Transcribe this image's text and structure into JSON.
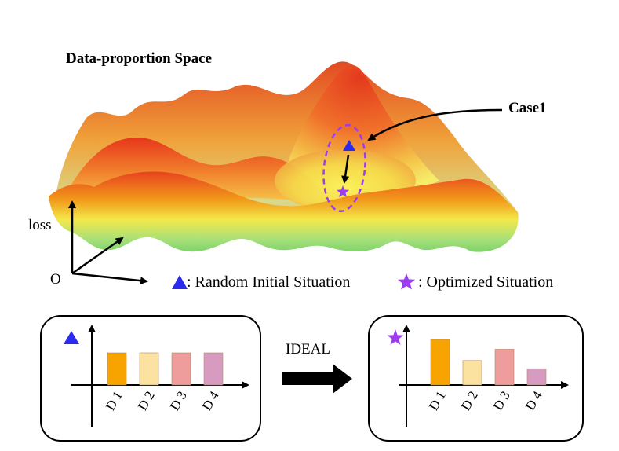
{
  "landscape": {
    "title": "Data-proportion Space",
    "case_label": "Case1",
    "axis_y_label": "loss",
    "origin_label": "O"
  },
  "legend": {
    "triangle_text": ": Random Initial Situation",
    "star_text": ": Optimized Situation",
    "triangle_color": "#2b2bf0",
    "star_color": "#9b3cf0"
  },
  "transition": {
    "label": "IDEAL"
  },
  "chart_data": [
    {
      "type": "bar",
      "name_marker": "triangle",
      "categories": [
        "D 1",
        "D 2",
        "D 3",
        "D 4"
      ],
      "values": [
        1.0,
        1.0,
        1.0,
        1.0
      ],
      "colors": [
        "#f7a400",
        "#fce2a0",
        "#ee9c9c",
        "#d79bc0"
      ]
    },
    {
      "type": "bar",
      "name_marker": "star",
      "categories": [
        "D 1",
        "D 2",
        "D 3",
        "D 4"
      ],
      "values": [
        1.45,
        0.78,
        1.14,
        0.52
      ],
      "colors": [
        "#f7a400",
        "#fce2a0",
        "#ee9c9c",
        "#d79bc0"
      ]
    }
  ]
}
